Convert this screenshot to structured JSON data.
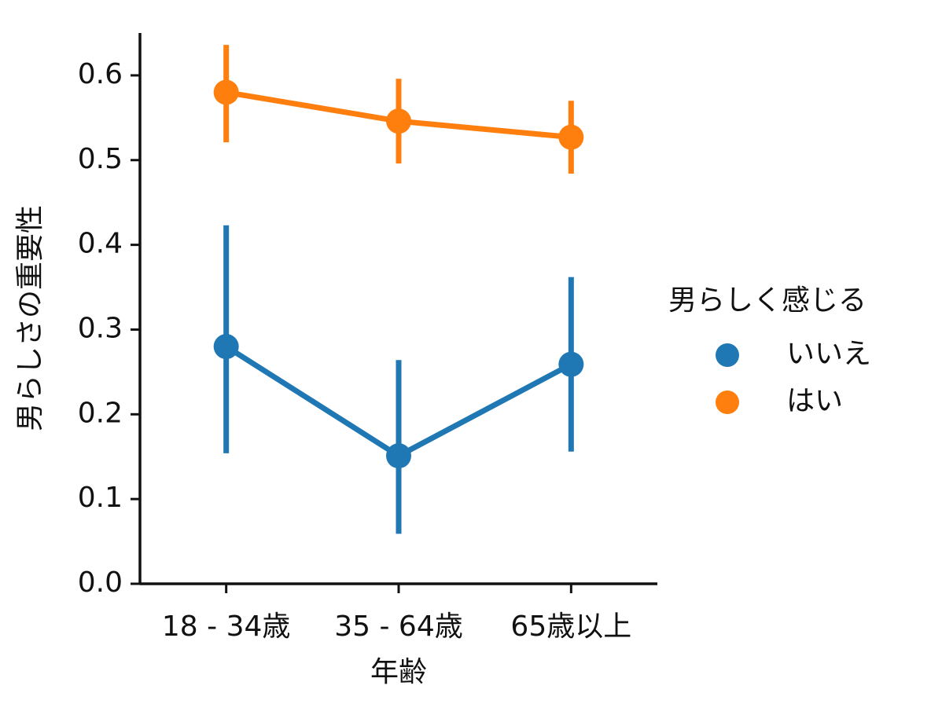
{
  "chart_data": {
    "type": "pointplot",
    "x_label": "年齢",
    "y_label": "男らしさの重要性",
    "legend_title": "男らしく感じる",
    "legend": "right",
    "categories": [
      "18 - 34歳",
      "35 - 64歳",
      "65歳以上"
    ],
    "series": [
      {
        "name": "いいえ",
        "color": "#1f77b4",
        "values": [
          0.28,
          0.151,
          0.259
        ],
        "lower": [
          0.154,
          0.059,
          0.156
        ],
        "upper": [
          0.423,
          0.264,
          0.362
        ]
      },
      {
        "name": "はい",
        "color": "#ff7f0e",
        "values": [
          0.58,
          0.546,
          0.527
        ],
        "lower": [
          0.521,
          0.496,
          0.484
        ],
        "upper": [
          0.636,
          0.596,
          0.57
        ]
      }
    ],
    "ylim": [
      0,
      0.65
    ],
    "yticks": [
      {
        "value": 0,
        "label": "0.0"
      },
      0.1,
      0.2,
      0.3,
      0.4,
      0.5,
      0.6
    ]
  }
}
